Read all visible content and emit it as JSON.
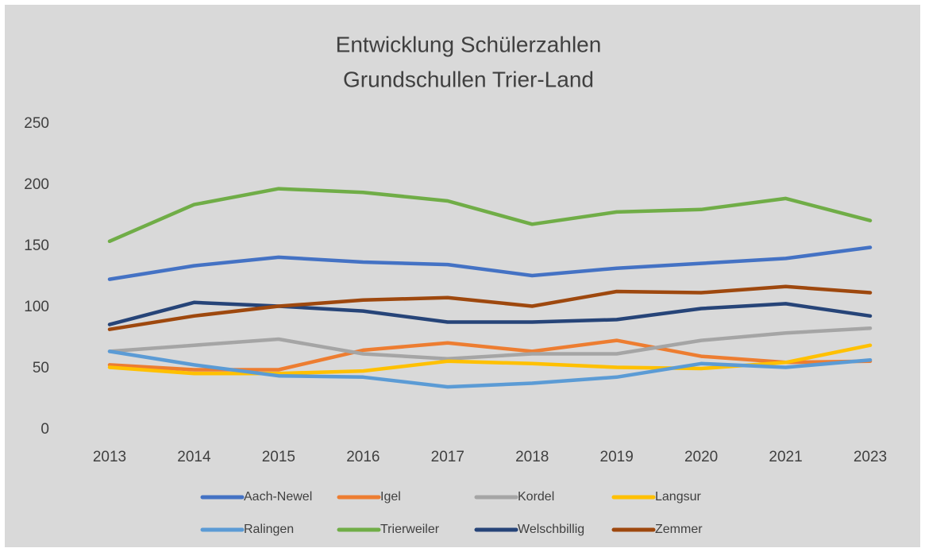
{
  "chart_data": {
    "type": "line",
    "title": [
      "Entwicklung Schülerzahlen",
      "Grundschullen Trier-Land"
    ],
    "categories": [
      "2013",
      "2014",
      "2015",
      "2016",
      "2017",
      "2018",
      "2019",
      "2020",
      "2021",
      "2023"
    ],
    "ylim": [
      0,
      250
    ],
    "yticks": [
      0,
      50,
      100,
      150,
      200,
      250
    ],
    "grid": false,
    "series": [
      {
        "name": "Aach-Newel",
        "color": "#4472c4",
        "values": [
          123,
          134,
          141,
          137,
          135,
          126,
          132,
          136,
          140,
          149
        ]
      },
      {
        "name": "Igel",
        "color": "#ed7d31",
        "values": [
          53,
          49,
          49,
          65,
          71,
          64,
          73,
          60,
          55,
          56
        ]
      },
      {
        "name": "Kordel",
        "color": "#a5a5a5",
        "values": [
          64,
          69,
          74,
          62,
          58,
          62,
          62,
          73,
          79,
          83
        ]
      },
      {
        "name": "Langsur",
        "color": "#ffc000",
        "values": [
          51,
          46,
          46,
          48,
          56,
          54,
          51,
          50,
          55,
          69
        ]
      },
      {
        "name": "Ralingen",
        "color": "#5b9bd5",
        "values": [
          64,
          53,
          44,
          43,
          35,
          38,
          43,
          54,
          51,
          57
        ]
      },
      {
        "name": "Trierweiler",
        "color": "#70ad47",
        "values": [
          154,
          184,
          197,
          194,
          187,
          168,
          178,
          180,
          189,
          171
        ]
      },
      {
        "name": "Welschbillig",
        "color": "#264478",
        "values": [
          86,
          104,
          101,
          97,
          88,
          88,
          90,
          99,
          103,
          93
        ]
      },
      {
        "name": "Zemmer",
        "color": "#9e480e",
        "values": [
          82,
          93,
          101,
          106,
          108,
          101,
          113,
          112,
          117,
          112
        ]
      }
    ]
  }
}
